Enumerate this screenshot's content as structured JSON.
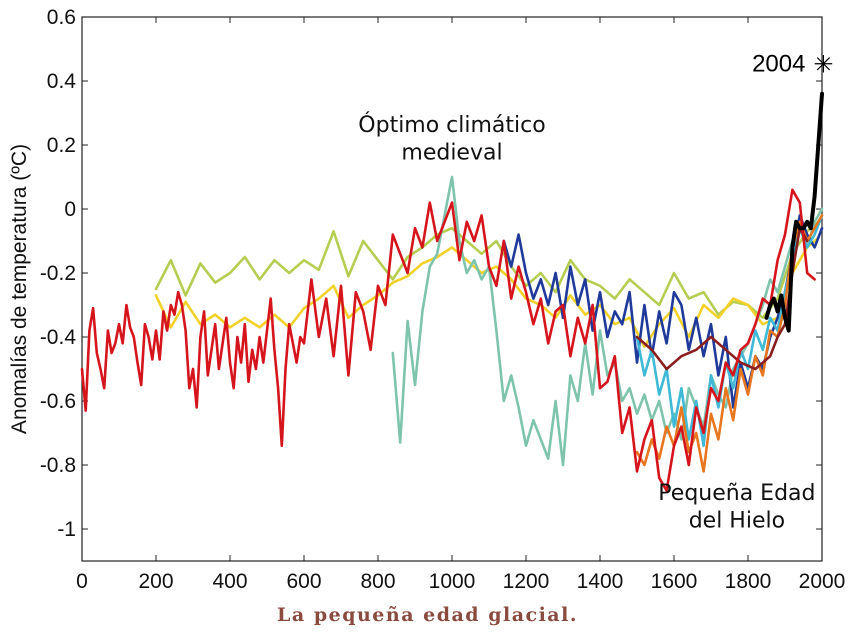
{
  "caption": "La pequeña edad glacial.",
  "chart_data": {
    "type": "line",
    "title": "",
    "xlabel": "",
    "ylabel": "Anomalías de temperatura (ºC)",
    "xlim": [
      0,
      2000
    ],
    "ylim": [
      -1.1,
      0.6
    ],
    "x_ticks": [
      "0",
      "200",
      "400",
      "600",
      "800",
      "1000",
      "1200",
      "1400",
      "1600",
      "1800",
      "2000"
    ],
    "y_ticks": [
      "-1",
      "-0.8",
      "-0.6",
      "-0.4",
      "-0.2",
      "0",
      "0.2",
      "0.4",
      "0.6"
    ],
    "annotations": [
      {
        "text": "Óptimo climático",
        "x": 1000,
        "y": 0.24
      },
      {
        "text": "medieval",
        "x": 1000,
        "y": 0.155
      },
      {
        "text": "Pequeña Edad",
        "x": 1770,
        "y": -0.91
      },
      {
        "text": "del Hielo",
        "x": 1770,
        "y": -0.995
      }
    ],
    "marker": {
      "label": "2004",
      "symbol": "✳",
      "x": 2004,
      "y": 0.455
    },
    "series": [
      {
        "color": "#b5cd50",
        "x": [
          200,
          240,
          280,
          320,
          360,
          400,
          440,
          480,
          520,
          560,
          600,
          640,
          680,
          720,
          760,
          800,
          840,
          880,
          920,
          960,
          1000,
          1040,
          1080,
          1120,
          1160,
          1200,
          1240,
          1280,
          1320,
          1360,
          1400,
          1440,
          1480,
          1520,
          1560,
          1600,
          1640,
          1680,
          1720,
          1760,
          1800,
          1840,
          1880,
          1920,
          1960,
          1990
        ],
        "y": [
          -0.25,
          -0.16,
          -0.27,
          -0.17,
          -0.23,
          -0.2,
          -0.15,
          -0.22,
          -0.16,
          -0.2,
          -0.16,
          -0.19,
          -0.07,
          -0.21,
          -0.1,
          -0.16,
          -0.22,
          -0.15,
          -0.12,
          -0.08,
          -0.06,
          -0.1,
          -0.14,
          -0.1,
          -0.18,
          -0.24,
          -0.2,
          -0.26,
          -0.16,
          -0.22,
          -0.24,
          -0.28,
          -0.22,
          -0.26,
          -0.3,
          -0.2,
          -0.28,
          -0.26,
          -0.33,
          -0.29,
          -0.3,
          -0.34,
          -0.28,
          -0.14,
          -0.07,
          -0.04
        ]
      },
      {
        "color": "#f2d12a",
        "x": [
          200,
          240,
          280,
          320,
          360,
          400,
          440,
          480,
          520,
          560,
          600,
          640,
          680,
          720,
          760,
          800,
          840,
          880,
          920,
          960,
          1000,
          1040,
          1080,
          1120,
          1160,
          1200,
          1240,
          1280,
          1320,
          1360,
          1400,
          1440,
          1480,
          1520,
          1560,
          1600,
          1640,
          1680,
          1720,
          1760,
          1800,
          1840,
          1880,
          1920,
          1960,
          1990
        ],
        "y": [
          -0.27,
          -0.37,
          -0.29,
          -0.36,
          -0.33,
          -0.37,
          -0.34,
          -0.37,
          -0.33,
          -0.37,
          -0.31,
          -0.28,
          -0.24,
          -0.34,
          -0.3,
          -0.27,
          -0.23,
          -0.21,
          -0.17,
          -0.15,
          -0.12,
          -0.16,
          -0.2,
          -0.18,
          -0.22,
          -0.28,
          -0.3,
          -0.34,
          -0.27,
          -0.33,
          -0.3,
          -0.36,
          -0.34,
          -0.43,
          -0.36,
          -0.31,
          -0.4,
          -0.3,
          -0.34,
          -0.28,
          -0.3,
          -0.36,
          -0.34,
          -0.2,
          -0.12,
          -0.09
        ]
      },
      {
        "color": "#7ec4ad",
        "x": [
          840,
          860,
          880,
          900,
          920,
          940,
          960,
          980,
          1000,
          1020,
          1040,
          1060,
          1080,
          1100,
          1120,
          1140,
          1160,
          1180,
          1200,
          1220,
          1240,
          1260,
          1280,
          1300,
          1320,
          1340,
          1360,
          1380,
          1400,
          1420,
          1440,
          1460,
          1480,
          1500,
          1520,
          1540,
          1560,
          1580,
          1600,
          1620,
          1640,
          1660,
          1680,
          1700,
          1720,
          1740,
          1760,
          1780,
          1800,
          1820,
          1840,
          1860,
          1880,
          1900,
          1920,
          1940,
          1960,
          1980,
          2000
        ],
        "y": [
          -0.45,
          -0.73,
          -0.35,
          -0.55,
          -0.32,
          -0.18,
          -0.14,
          -0.02,
          0.1,
          -0.1,
          -0.2,
          -0.16,
          -0.22,
          -0.18,
          -0.38,
          -0.6,
          -0.52,
          -0.62,
          -0.74,
          -0.66,
          -0.72,
          -0.78,
          -0.6,
          -0.8,
          -0.52,
          -0.6,
          -0.42,
          -0.58,
          -0.38,
          -0.52,
          -0.48,
          -0.6,
          -0.56,
          -0.64,
          -0.58,
          -0.66,
          -0.6,
          -0.7,
          -0.64,
          -0.72,
          -0.56,
          -0.62,
          -0.68,
          -0.52,
          -0.58,
          -0.62,
          -0.5,
          -0.46,
          -0.42,
          -0.36,
          -0.3,
          -0.22,
          -0.26,
          -0.18,
          -0.1,
          -0.06,
          -0.12,
          -0.04,
          0.0
        ]
      },
      {
        "color": "#1f3a9a",
        "x": [
          1140,
          1160,
          1180,
          1200,
          1220,
          1240,
          1260,
          1280,
          1300,
          1320,
          1340,
          1360,
          1380,
          1400,
          1420,
          1440,
          1460,
          1480,
          1500,
          1520,
          1540,
          1560,
          1580,
          1600,
          1620,
          1640,
          1660,
          1680,
          1700,
          1720,
          1740,
          1760,
          1780,
          1800,
          1820,
          1840,
          1860,
          1880,
          1900,
          1920,
          1940,
          1960,
          1980,
          2000
        ],
        "y": [
          -0.1,
          -0.18,
          -0.08,
          -0.2,
          -0.28,
          -0.22,
          -0.3,
          -0.2,
          -0.34,
          -0.18,
          -0.3,
          -0.22,
          -0.38,
          -0.26,
          -0.4,
          -0.32,
          -0.36,
          -0.26,
          -0.48,
          -0.3,
          -0.46,
          -0.32,
          -0.42,
          -0.26,
          -0.3,
          -0.44,
          -0.34,
          -0.46,
          -0.36,
          -0.52,
          -0.4,
          -0.62,
          -0.48,
          -0.56,
          -0.46,
          -0.5,
          -0.4,
          -0.34,
          -0.26,
          -0.14,
          -0.02,
          -0.08,
          -0.12,
          -0.06
        ]
      },
      {
        "color": "#3fb9d6",
        "x": [
          1500,
          1520,
          1540,
          1560,
          1580,
          1600,
          1620,
          1640,
          1660,
          1680,
          1700,
          1720,
          1740,
          1760,
          1780,
          1800,
          1820,
          1840,
          1860,
          1880,
          1900,
          1920,
          1940,
          1960,
          1980,
          2000
        ],
        "y": [
          -0.4,
          -0.52,
          -0.44,
          -0.58,
          -0.5,
          -0.68,
          -0.56,
          -0.72,
          -0.6,
          -0.74,
          -0.52,
          -0.62,
          -0.48,
          -0.56,
          -0.44,
          -0.5,
          -0.38,
          -0.44,
          -0.34,
          -0.38,
          -0.26,
          -0.16,
          -0.06,
          -0.12,
          -0.08,
          -0.02
        ]
      },
      {
        "color": "#e8761f",
        "x": [
          1500,
          1520,
          1540,
          1560,
          1580,
          1600,
          1620,
          1640,
          1660,
          1680,
          1700,
          1720,
          1740,
          1760,
          1780,
          1800,
          1820,
          1840,
          1860,
          1880,
          1900,
          1920,
          1940,
          1960,
          1980,
          2000
        ],
        "y": [
          -0.76,
          -0.8,
          -0.72,
          -0.78,
          -0.68,
          -0.74,
          -0.62,
          -0.76,
          -0.7,
          -0.82,
          -0.64,
          -0.72,
          -0.56,
          -0.66,
          -0.5,
          -0.58,
          -0.46,
          -0.52,
          -0.38,
          -0.4,
          -0.3,
          -0.12,
          -0.04,
          -0.1,
          -0.06,
          -0.02
        ]
      },
      {
        "color": "#8b1f1f",
        "x": [
          1500,
          1540,
          1580,
          1620,
          1660,
          1700,
          1740,
          1780,
          1820,
          1860,
          1880,
          1900,
          1920,
          1940,
          1960
        ],
        "y": [
          -0.4,
          -0.44,
          -0.5,
          -0.46,
          -0.44,
          -0.4,
          -0.44,
          -0.48,
          -0.5,
          -0.46,
          -0.4,
          -0.36,
          -0.2,
          -0.06,
          -0.1
        ]
      },
      {
        "color": "#d6141c",
        "x": [
          0,
          10,
          20,
          30,
          40,
          50,
          60,
          70,
          80,
          90,
          100,
          110,
          120,
          130,
          140,
          150,
          160,
          170,
          180,
          190,
          200,
          210,
          220,
          230,
          240,
          250,
          260,
          270,
          280,
          290,
          300,
          310,
          320,
          330,
          340,
          350,
          360,
          370,
          380,
          390,
          400,
          410,
          420,
          430,
          440,
          450,
          460,
          470,
          480,
          490,
          500,
          510,
          520,
          530,
          540,
          550,
          560,
          570,
          580,
          590,
          600,
          620,
          640,
          660,
          680,
          700,
          720,
          740,
          760,
          780,
          800,
          820,
          840,
          860,
          880,
          900,
          920,
          940,
          960,
          980,
          1000,
          1020,
          1040,
          1060,
          1080,
          1100,
          1120,
          1140,
          1160,
          1180,
          1200,
          1220,
          1240,
          1260,
          1280,
          1300,
          1320,
          1340,
          1360,
          1380,
          1400,
          1420,
          1440,
          1460,
          1480,
          1500,
          1520,
          1540,
          1560,
          1580,
          1600,
          1620,
          1640,
          1660,
          1680,
          1700,
          1720,
          1740,
          1760,
          1780,
          1800,
          1820,
          1840,
          1860,
          1880,
          1900,
          1920,
          1940,
          1960,
          1980
        ],
        "y": [
          -0.5,
          -0.63,
          -0.38,
          -0.31,
          -0.45,
          -0.5,
          -0.56,
          -0.38,
          -0.45,
          -0.42,
          -0.36,
          -0.42,
          -0.3,
          -0.37,
          -0.4,
          -0.48,
          -0.55,
          -0.36,
          -0.4,
          -0.47,
          -0.38,
          -0.47,
          -0.32,
          -0.38,
          -0.3,
          -0.33,
          -0.26,
          -0.3,
          -0.38,
          -0.56,
          -0.5,
          -0.62,
          -0.4,
          -0.32,
          -0.52,
          -0.44,
          -0.36,
          -0.5,
          -0.42,
          -0.34,
          -0.48,
          -0.56,
          -0.4,
          -0.48,
          -0.36,
          -0.54,
          -0.44,
          -0.5,
          -0.4,
          -0.48,
          -0.38,
          -0.28,
          -0.44,
          -0.56,
          -0.74,
          -0.5,
          -0.36,
          -0.42,
          -0.48,
          -0.4,
          -0.42,
          -0.22,
          -0.4,
          -0.28,
          -0.46,
          -0.24,
          -0.52,
          -0.26,
          -0.32,
          -0.44,
          -0.24,
          -0.3,
          -0.08,
          -0.14,
          -0.2,
          -0.06,
          -0.12,
          0.02,
          -0.1,
          -0.04,
          0.02,
          -0.16,
          -0.04,
          -0.1,
          -0.02,
          -0.18,
          -0.24,
          -0.1,
          -0.28,
          -0.18,
          -0.26,
          -0.36,
          -0.28,
          -0.42,
          -0.32,
          -0.3,
          -0.46,
          -0.34,
          -0.42,
          -0.3,
          -0.56,
          -0.54,
          -0.46,
          -0.7,
          -0.62,
          -0.82,
          -0.72,
          -0.66,
          -0.84,
          -0.88,
          -0.74,
          -0.68,
          -0.8,
          -0.62,
          -0.7,
          -0.56,
          -0.6,
          -0.48,
          -0.52,
          -0.44,
          -0.42,
          -0.36,
          -0.28,
          -0.3,
          -0.16,
          -0.08,
          0.06,
          0.02,
          -0.2,
          -0.22
        ]
      },
      {
        "color": "#000000",
        "x": [
          1850,
          1860,
          1870,
          1880,
          1890,
          1900,
          1910,
          1920,
          1930,
          1940,
          1950,
          1960,
          1970,
          1980,
          1990,
          2000
        ],
        "y": [
          -0.34,
          -0.3,
          -0.28,
          -0.32,
          -0.27,
          -0.34,
          -0.38,
          -0.12,
          -0.04,
          -0.06,
          -0.06,
          -0.04,
          -0.06,
          0.04,
          0.2,
          0.36
        ]
      }
    ]
  }
}
